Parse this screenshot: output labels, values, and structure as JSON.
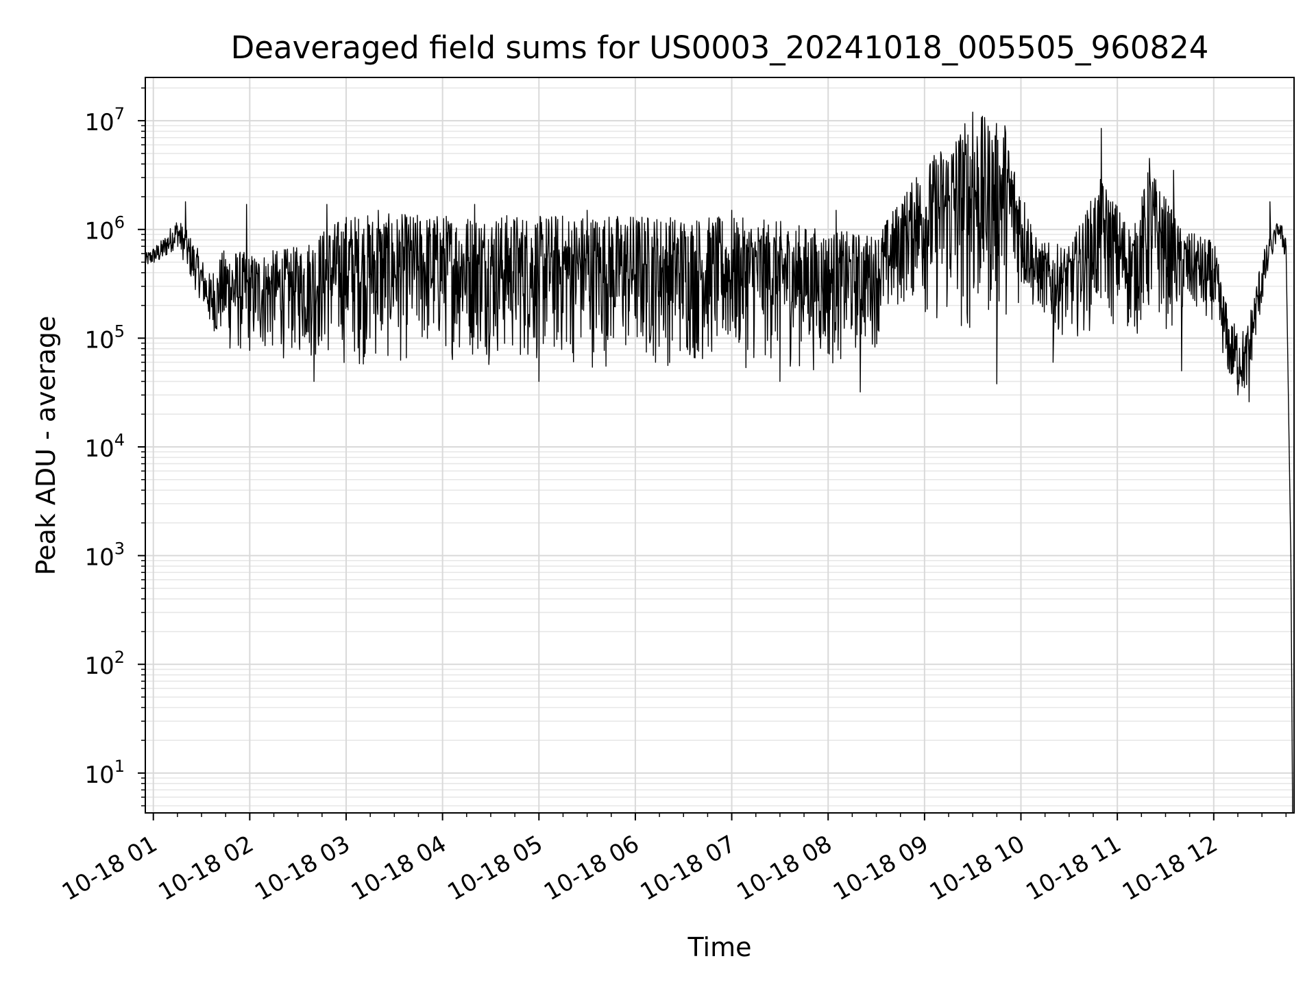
{
  "chart_data": {
    "type": "line",
    "title": "Deaveraged field sums for US0003_20241018_005505_960824",
    "xlabel": "Time",
    "ylabel": "Peak ADU - average",
    "yscale": "log",
    "xlim": [
      "2024-10-18 00:55",
      "2024-10-18 12:50"
    ],
    "ylim": [
      4.3,
      25000000
    ],
    "grid": true,
    "x_ticks": [
      "10-18 01",
      "10-18 02",
      "10-18 03",
      "10-18 04",
      "10-18 05",
      "10-18 06",
      "10-18 07",
      "10-18 08",
      "10-18 09",
      "10-18 10",
      "10-18 11",
      "10-18 12"
    ],
    "y_ticks": [
      {
        "value": 10,
        "base": "10",
        "exp": "1"
      },
      {
        "value": 100,
        "base": "10",
        "exp": "2"
      },
      {
        "value": 1000,
        "base": "10",
        "exp": "3"
      },
      {
        "value": 10000,
        "base": "10",
        "exp": "4"
      },
      {
        "value": 100000,
        "base": "10",
        "exp": "5"
      },
      {
        "value": 1000000,
        "base": "10",
        "exp": "6"
      },
      {
        "value": 10000000,
        "base": "10",
        "exp": "7"
      }
    ],
    "series": [
      {
        "color": "#000000",
        "envelope": [
          {
            "t": "2024-10-18 00:55",
            "low": 450000,
            "high": 600000
          },
          {
            "t": "2024-10-18 01:05",
            "low": 500000,
            "high": 800000
          },
          {
            "t": "2024-10-18 01:15",
            "low": 700000,
            "high": 1300000
          },
          {
            "t": "2024-10-18 01:25",
            "low": 300000,
            "high": 800000
          },
          {
            "t": "2024-10-18 01:35",
            "low": 150000,
            "high": 400000
          },
          {
            "t": "2024-10-18 01:45",
            "low": 60000,
            "high": 700000
          },
          {
            "t": "2024-10-18 02:00",
            "low": 60000,
            "high": 600000
          },
          {
            "t": "2024-10-18 02:30",
            "low": 60000,
            "high": 700000
          },
          {
            "t": "2024-10-18 03:00",
            "low": 50000,
            "high": 1400000
          },
          {
            "t": "2024-10-18 03:30",
            "low": 50000,
            "high": 1400000
          },
          {
            "t": "2024-10-18 04:00",
            "low": 60000,
            "high": 1400000
          },
          {
            "t": "2024-10-18 05:00",
            "low": 50000,
            "high": 1400000
          },
          {
            "t": "2024-10-18 06:00",
            "low": 50000,
            "high": 1400000
          },
          {
            "t": "2024-10-18 07:00",
            "low": 50000,
            "high": 1300000
          },
          {
            "t": "2024-10-18 07:30",
            "low": 50000,
            "high": 1200000
          },
          {
            "t": "2024-10-18 08:00",
            "low": 45000,
            "high": 1000000
          },
          {
            "t": "2024-10-18 08:30",
            "low": 80000,
            "high": 900000
          },
          {
            "t": "2024-10-18 08:50",
            "low": 200000,
            "high": 2500000
          },
          {
            "t": "2024-10-18 09:10",
            "low": 100000,
            "high": 6000000
          },
          {
            "t": "2024-10-18 09:30",
            "low": 80000,
            "high": 12000000
          },
          {
            "t": "2024-10-18 09:50",
            "low": 150000,
            "high": 9000000
          },
          {
            "t": "2024-10-18 10:10",
            "low": 200000,
            "high": 800000
          },
          {
            "t": "2024-10-18 10:30",
            "low": 90000,
            "high": 700000
          },
          {
            "t": "2024-10-18 10:50",
            "low": 120000,
            "high": 3000000
          },
          {
            "t": "2024-10-18 11:10",
            "low": 90000,
            "high": 1000000
          },
          {
            "t": "2024-10-18 11:20",
            "low": 100000,
            "high": 4000000
          },
          {
            "t": "2024-10-18 11:40",
            "low": 120000,
            "high": 1000000
          },
          {
            "t": "2024-10-18 12:00",
            "low": 150000,
            "high": 800000
          },
          {
            "t": "2024-10-18 12:10",
            "low": 40000,
            "high": 150000
          },
          {
            "t": "2024-10-18 12:20",
            "low": 30000,
            "high": 120000
          },
          {
            "t": "2024-10-18 12:30",
            "low": 200000,
            "high": 600000
          },
          {
            "t": "2024-10-18 12:40",
            "low": 900000,
            "high": 1200000
          },
          {
            "t": "2024-10-18 12:45",
            "low": 500000,
            "high": 1000000
          },
          {
            "t": "2024-10-18 12:48",
            "low": 10,
            "high": 100000
          },
          {
            "t": "2024-10-18 12:49",
            "low": 4.3,
            "high": 10
          }
        ],
        "spikes": [
          {
            "t": "2024-10-18 01:20",
            "y": 1800000
          },
          {
            "t": "2024-10-18 01:58",
            "y": 1700000
          },
          {
            "t": "2024-10-18 02:48",
            "y": 1700000
          },
          {
            "t": "2024-10-18 03:20",
            "y": 1500000
          },
          {
            "t": "2024-10-18 04:20",
            "y": 1700000
          },
          {
            "t": "2024-10-18 05:30",
            "y": 1500000
          },
          {
            "t": "2024-10-18 07:00",
            "y": 1500000
          },
          {
            "t": "2024-10-18 08:05",
            "y": 1500000
          },
          {
            "t": "2024-10-18 08:55",
            "y": 3000000
          },
          {
            "t": "2024-10-18 09:30",
            "y": 12000000
          },
          {
            "t": "2024-10-18 09:36",
            "y": 11000000
          },
          {
            "t": "2024-10-18 09:50",
            "y": 9000000
          },
          {
            "t": "2024-10-18 10:50",
            "y": 8500000
          },
          {
            "t": "2024-10-18 11:20",
            "y": 4500000
          },
          {
            "t": "2024-10-18 11:35",
            "y": 3500000
          },
          {
            "t": "2024-10-18 12:35",
            "y": 1800000
          }
        ],
        "dips": [
          {
            "t": "2024-10-18 01:35",
            "y": 150000
          },
          {
            "t": "2024-10-18 02:40",
            "y": 40000
          },
          {
            "t": "2024-10-18 05:00",
            "y": 40000
          },
          {
            "t": "2024-10-18 07:30",
            "y": 40000
          },
          {
            "t": "2024-10-18 08:20",
            "y": 32000
          },
          {
            "t": "2024-10-18 09:45",
            "y": 38000
          },
          {
            "t": "2024-10-18 10:20",
            "y": 60000
          },
          {
            "t": "2024-10-18 11:40",
            "y": 50000
          },
          {
            "t": "2024-10-18 12:15",
            "y": 30000
          },
          {
            "t": "2024-10-18 12:22",
            "y": 26000
          }
        ]
      }
    ]
  }
}
